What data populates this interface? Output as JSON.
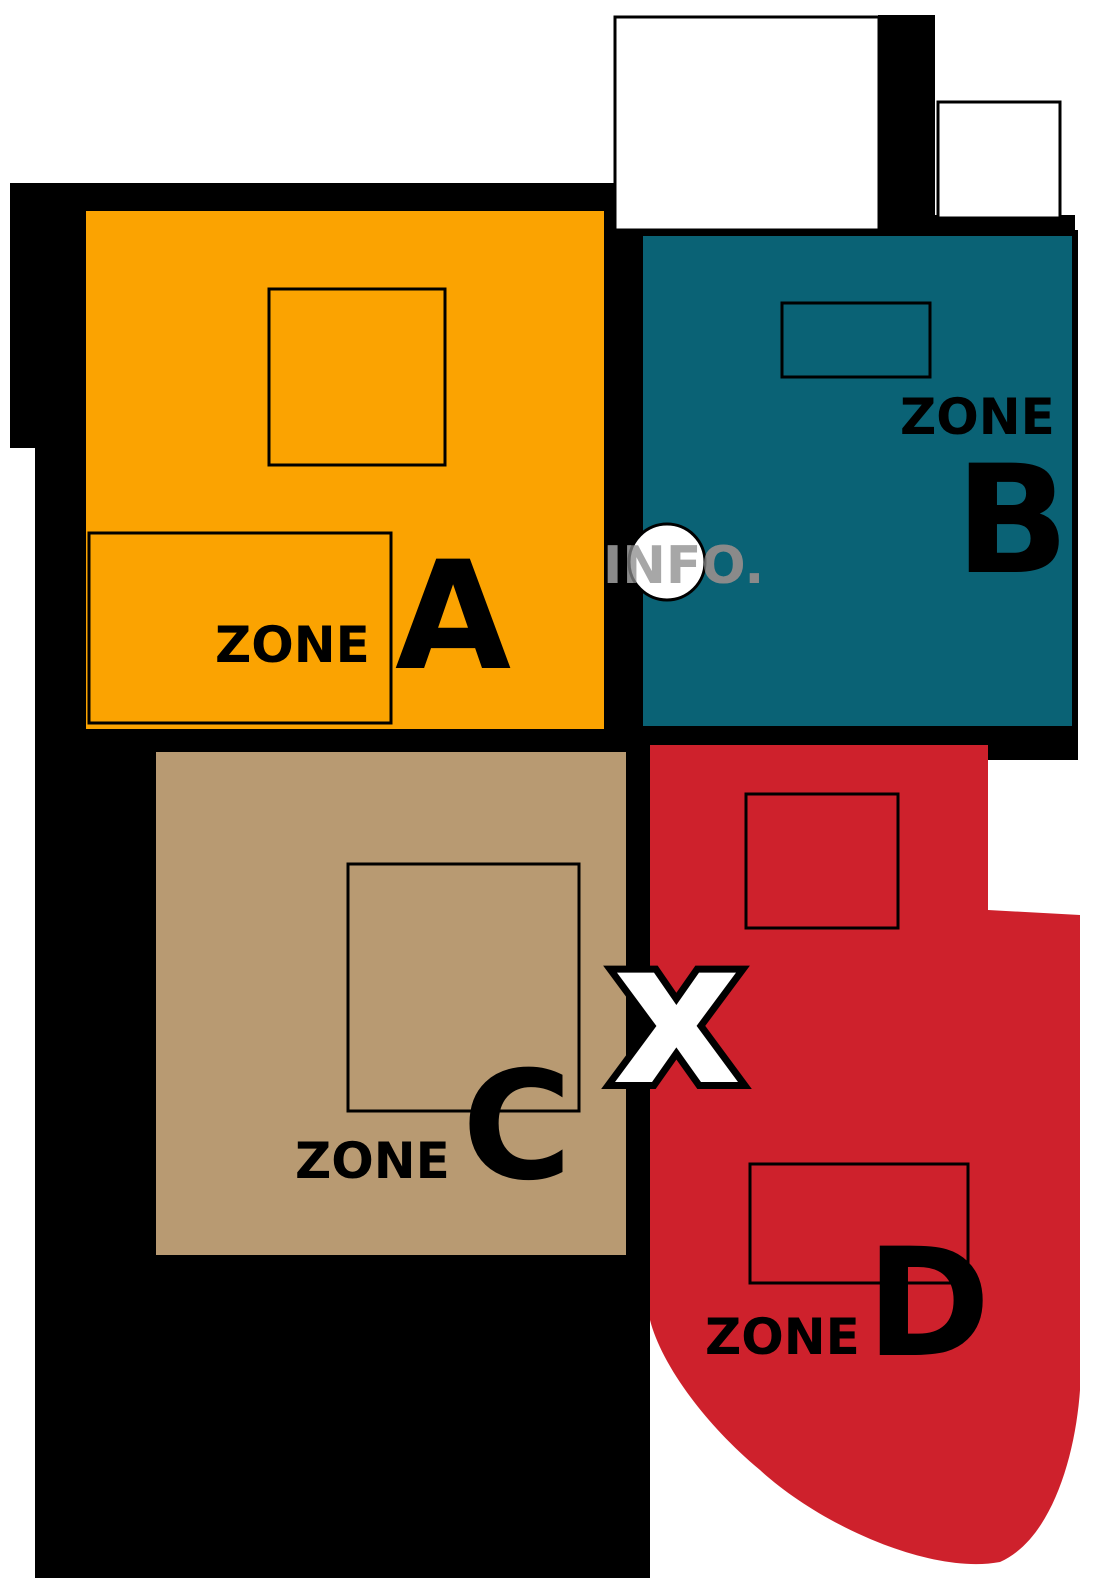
{
  "zones": {
    "a": {
      "word": "ZONE",
      "letter": "A",
      "color": "#FBA301"
    },
    "b": {
      "word": "ZONE",
      "letter": "B",
      "color": "#0A6275"
    },
    "c": {
      "word": "ZONE",
      "letter": "C",
      "color": "#B89A72"
    },
    "d": {
      "word": "ZONE",
      "letter": "D",
      "color": "#CE212C"
    }
  },
  "info_point": {
    "label": "INFO.",
    "icon": "info-point-circle"
  },
  "current_location": {
    "symbol": "X",
    "icon": "you-are-here-x-mark"
  },
  "outline_color": "#000000"
}
